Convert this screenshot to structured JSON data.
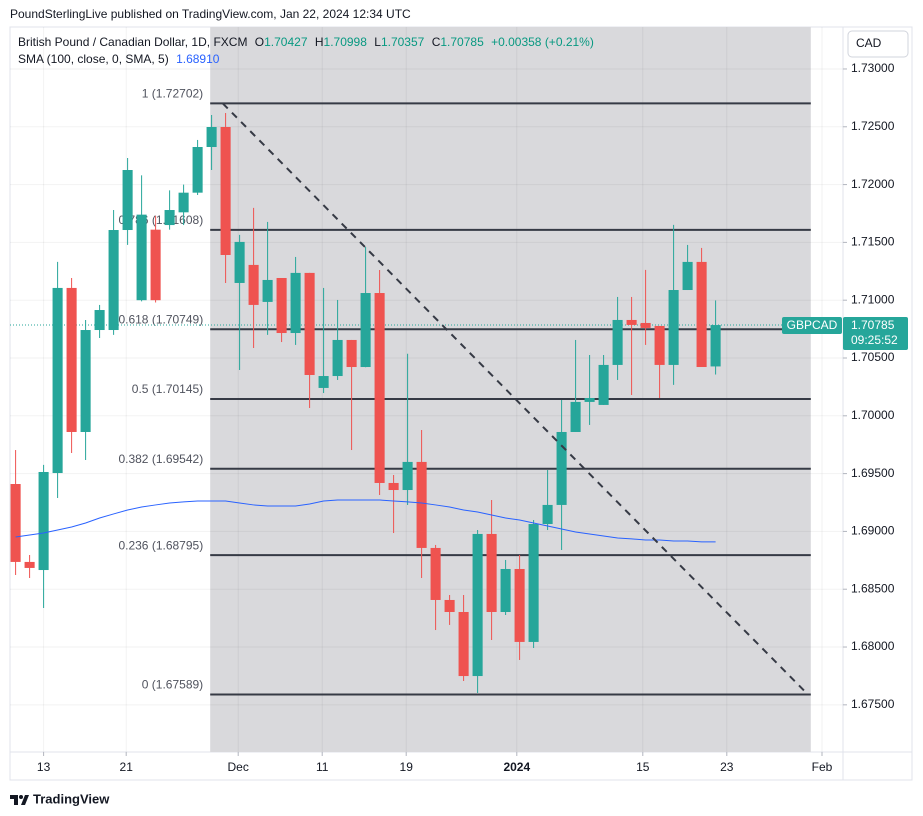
{
  "header": {
    "publisher": "PoundSterlingLive published on TradingView.com, Jan 22, 2024 12:34 UTC"
  },
  "legend": {
    "symbol": "British Pound / Canadian Dollar, 1D, FXCM",
    "o_label": "O",
    "open": "1.70427",
    "h_label": "H",
    "high": "1.70998",
    "l_label": "L",
    "low": "1.70357",
    "c_label": "C",
    "close": "1.70785",
    "change": "+0.00358 (+0.21%)",
    "sma_label": "SMA (100, close, 0, SMA, 5)",
    "sma_value": "1.68910"
  },
  "currency": "CAD",
  "footer": {
    "brand": "TradingView"
  },
  "chart_data": {
    "type": "candlestick",
    "up_color": "#26a69a",
    "down_color": "#ef5350",
    "open": [
      1.6941,
      1.68736,
      1.68666,
      1.69505,
      1.71106,
      1.6986,
      1.70742,
      1.70742,
      1.71607,
      1.71,
      1.7161,
      1.7165,
      1.7176,
      1.7193,
      1.72325,
      1.72498,
      1.71149,
      1.71305,
      1.70985,
      1.71192,
      1.70716,
      1.71236,
      1.70241,
      1.70344,
      1.70656,
      1.70422,
      1.71062,
      1.69419,
      1.69358,
      1.69601,
      1.68857,
      1.68407,
      1.68303,
      1.67749,
      1.68978,
      1.68303,
      1.68675,
      1.68044,
      1.69064,
      1.69229,
      1.6986,
      1.7012,
      1.70094,
      1.7044,
      1.70829,
      1.70803,
      1.70777,
      1.7044,
      1.71088,
      1.71331,
      1.70427
    ],
    "high": [
      1.69704,
      1.68796,
      1.69575,
      1.71331,
      1.71192,
      1.70829,
      1.70959,
      1.7178,
      1.7223,
      1.7208,
      1.7173,
      1.7195,
      1.72,
      1.72386,
      1.72602,
      1.72619,
      1.71565,
      1.71798,
      1.71677,
      1.71192,
      1.71374,
      1.71236,
      1.71106,
      1.71002,
      1.70656,
      1.7146,
      1.71261,
      1.69488,
      1.70537,
      1.69877,
      1.68883,
      1.6845,
      1.6845,
      1.69012,
      1.69272,
      1.68753,
      1.68796,
      1.69099,
      1.69531,
      1.70137,
      1.70656,
      1.70526,
      1.70526,
      1.71028,
      1.71028,
      1.71262,
      1.70777,
      1.71651,
      1.71478,
      1.71452,
      1.70998
    ],
    "low": [
      1.68623,
      1.68597,
      1.68338,
      1.69289,
      1.69678,
      1.69618,
      1.70673,
      1.707,
      1.71478,
      1.7099,
      1.7098,
      1.7161,
      1.7165,
      1.7191,
      1.72126,
      1.71149,
      1.70396,
      1.70587,
      1.707,
      1.70638,
      1.70613,
      1.70068,
      1.70197,
      1.7031,
      1.69704,
      1.7042,
      1.69315,
      1.68986,
      1.69228,
      1.68597,
      1.68147,
      1.68191,
      1.67706,
      1.67602,
      1.68061,
      1.68277,
      1.67888,
      1.67992,
      1.69012,
      1.68839,
      1.6986,
      1.69921,
      1.70094,
      1.7031,
      1.7018,
      1.70613,
      1.70154,
      1.70267,
      1.71088,
      1.70422,
      1.70357
    ],
    "close": [
      1.68736,
      1.68684,
      1.69514,
      1.71106,
      1.6986,
      1.70742,
      1.70915,
      1.71607,
      1.72126,
      1.7174,
      1.71,
      1.7178,
      1.7193,
      1.72325,
      1.72498,
      1.71391,
      1.71504,
      1.70959,
      1.71175,
      1.70716,
      1.71236,
      1.70353,
      1.70344,
      1.70656,
      1.70422,
      1.71062,
      1.69419,
      1.69358,
      1.69601,
      1.68857,
      1.68407,
      1.68303,
      1.67749,
      1.68978,
      1.68303,
      1.68675,
      1.68044,
      1.69064,
      1.69229,
      1.6986,
      1.7012,
      1.70154,
      1.7044,
      1.70829,
      1.70786,
      1.7076,
      1.7044,
      1.71088,
      1.71331,
      1.70422,
      1.70785
    ],
    "sma": {
      "color": "#2962ff",
      "values": [
        1.68952,
        1.68969,
        1.68986,
        1.69012,
        1.69038,
        1.69073,
        1.69116,
        1.69151,
        1.69185,
        1.69211,
        1.69229,
        1.69246,
        1.69255,
        1.69263,
        1.69263,
        1.69263,
        1.69246,
        1.69229,
        1.6922,
        1.6922,
        1.6922,
        1.69237,
        1.69263,
        1.69272,
        1.69272,
        1.69272,
        1.69272,
        1.69263,
        1.69255,
        1.69246,
        1.69229,
        1.69211,
        1.69185,
        1.69168,
        1.69142,
        1.69116,
        1.69099,
        1.69073,
        1.69047,
        1.69021,
        1.68995,
        1.68978,
        1.6896,
        1.68943,
        1.68935,
        1.68926,
        1.68926,
        1.68917,
        1.68917,
        1.68909,
        1.6891
      ]
    },
    "fib": {
      "start": 13.9,
      "end": 56.8,
      "color": "#363a45",
      "area_color": "#d9d9dc",
      "levels": [
        {
          "value": 1.72702,
          "label": "1 (1.72702)"
        },
        {
          "value": 1.71608,
          "label": "0.786 (1.71608)"
        },
        {
          "value": 1.70749,
          "label": "0.618 (1.70749)"
        },
        {
          "value": 1.70145,
          "label": "0.5 (1.70145)"
        },
        {
          "value": 1.69542,
          "label": "0.382 (1.69542)"
        },
        {
          "value": 1.68795,
          "label": "0.236 (1.68795)"
        },
        {
          "value": 1.67589,
          "label": "0 (1.67589)"
        }
      ]
    },
    "trend_line": {
      "x": [
        14.8,
        56.6
      ],
      "y": [
        1.72702,
        1.67589
      ]
    },
    "price_tag": {
      "symbol": "GBPCAD",
      "value": 1.70785,
      "time": "09:25:52",
      "color": "#26a69a"
    },
    "xlim": [
      -0.4,
      59.1
    ],
    "ylim": [
      1.67092,
      1.73363
    ],
    "xticks": [
      {
        "value": 2,
        "label": "13"
      },
      {
        "value": 7.9,
        "label": "21"
      },
      {
        "value": 15.9,
        "label": "Dec"
      },
      {
        "value": 21.9,
        "label": "11"
      },
      {
        "value": 27.9,
        "label": "19"
      },
      {
        "value": 35.8,
        "label": "2024"
      },
      {
        "value": 44.8,
        "label": "15"
      },
      {
        "value": 50.8,
        "label": "23"
      },
      {
        "value": 57.6,
        "label": "Feb"
      }
    ],
    "yticks": [
      {
        "value": 1.675,
        "label": "1.67500"
      },
      {
        "value": 1.68,
        "label": "1.68000"
      },
      {
        "value": 1.685,
        "label": "1.68500"
      },
      {
        "value": 1.69,
        "label": "1.69000"
      },
      {
        "value": 1.695,
        "label": "1.69500"
      },
      {
        "value": 1.7,
        "label": "1.70000"
      },
      {
        "value": 1.705,
        "label": "1.70500"
      },
      {
        "value": 1.71,
        "label": "1.71000"
      },
      {
        "value": 1.715,
        "label": "1.71500"
      },
      {
        "value": 1.72,
        "label": "1.72000"
      },
      {
        "value": 1.725,
        "label": "1.72500"
      },
      {
        "value": 1.73,
        "label": "1.73000"
      }
    ],
    "grid": true
  }
}
